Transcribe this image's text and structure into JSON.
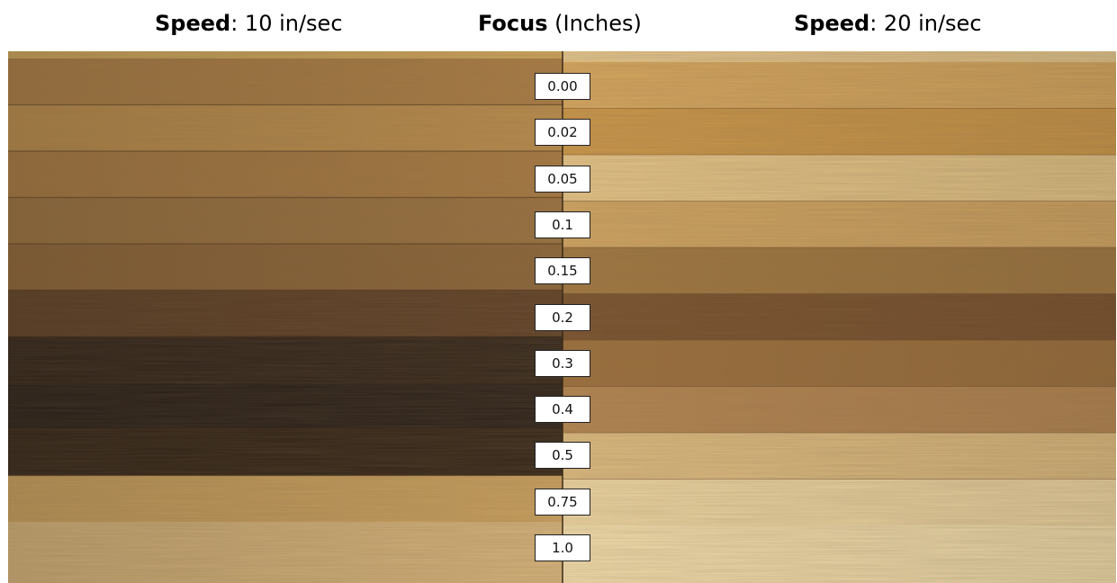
{
  "header": {
    "left": {
      "bold": "Speed",
      "rest": ": 10 in/sec"
    },
    "center": {
      "bold": "Focus",
      "rest": " (Inches)"
    },
    "right": {
      "bold": "Speed",
      "rest": ": 20 in/sec"
    }
  },
  "focus_levels": [
    "0.00",
    "0.02",
    "0.05",
    "0.1",
    "0.15",
    "0.2",
    "0.3",
    "0.4",
    "0.5",
    "0.75",
    "1.0"
  ],
  "colors": {
    "wood_light": "#f0d9a4",
    "wood_mid": "#c99a52",
    "burn_dark": "#2e2116",
    "label_bg": "#ffffff",
    "label_border": "#222222"
  },
  "left_band_colors": [
    "#a77b44",
    "#b68a4c",
    "#a47842",
    "#977040",
    "#8a6438",
    "#5e4027",
    "#33261b",
    "#2b211a",
    "#342619",
    "#c79f5e",
    "#d3b27a"
  ],
  "right_band_colors": [
    "#d5a65e",
    "#c99649",
    "#e3c487",
    "#cfa462",
    "#9e7640",
    "#77502d",
    "#9a6e3c",
    "#b28451",
    "#dcbb80",
    "#ecd5a2",
    "#f0dcab"
  ]
}
